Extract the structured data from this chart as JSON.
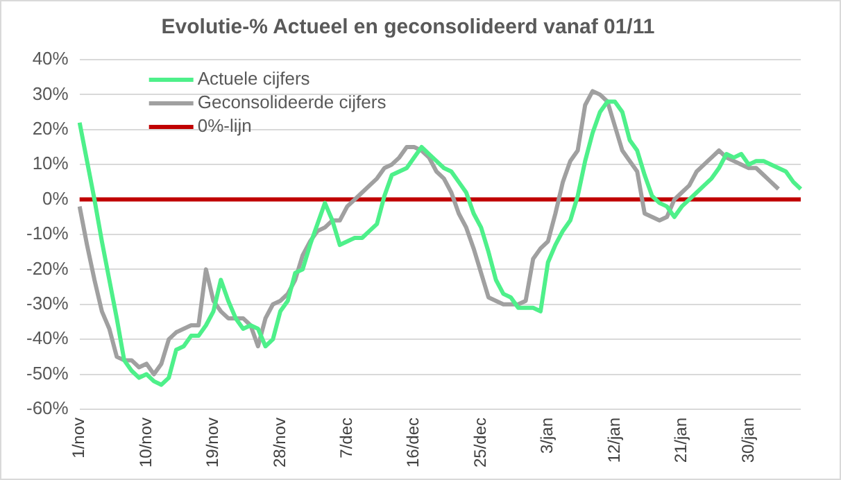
{
  "chart_data": {
    "type": "line",
    "title": "Evolutie-% Actueel en geconsolideerd vanaf 01/11",
    "categories": [
      "1/nov",
      null,
      null,
      null,
      null,
      null,
      null,
      null,
      null,
      "10/nov",
      null,
      null,
      null,
      null,
      null,
      null,
      null,
      null,
      "19/nov",
      null,
      null,
      null,
      null,
      null,
      null,
      null,
      null,
      "28/nov",
      null,
      null,
      null,
      null,
      null,
      null,
      null,
      null,
      "7/dec",
      null,
      null,
      null,
      null,
      null,
      null,
      null,
      null,
      "16/dec",
      null,
      null,
      null,
      null,
      null,
      null,
      null,
      null,
      "25/dec",
      null,
      null,
      null,
      null,
      null,
      null,
      null,
      null,
      "3/jan",
      null,
      null,
      null,
      null,
      null,
      null,
      null,
      null,
      "12/jan",
      null,
      null,
      null,
      null,
      null,
      null,
      null,
      null,
      "21/jan",
      null,
      null,
      null,
      null,
      null,
      null,
      null,
      null,
      "30/jan",
      null,
      null,
      null,
      null,
      null,
      null,
      null
    ],
    "series": [
      {
        "name": "Actuele cijfers",
        "color": "#4ef08a",
        "values": [
          22,
          11,
          0,
          -12,
          -23,
          -34,
          -46,
          -49,
          -51,
          -50,
          -52,
          -53,
          -51,
          -43,
          -42,
          -39,
          -39,
          -36,
          -32,
          -23,
          -29,
          -34,
          -37,
          -36,
          -37,
          -42,
          -40,
          -32,
          -29,
          -21,
          -20,
          -13,
          -7,
          -1,
          -6,
          -13,
          -12,
          -11,
          -11,
          -9,
          -7,
          1,
          7,
          8,
          9,
          12,
          15,
          13,
          11,
          9,
          8,
          5,
          2,
          -4,
          -8,
          -15,
          -23,
          -27,
          -28,
          -31,
          -31,
          -31,
          -32,
          -18,
          -13,
          -9,
          -6,
          1,
          11,
          19,
          25,
          28,
          28,
          25,
          17,
          14,
          7,
          1,
          -1,
          -2,
          -5,
          -2,
          0,
          2,
          4,
          6,
          9,
          13,
          12,
          13,
          10,
          11,
          11,
          10,
          9,
          8,
          5,
          3
        ]
      },
      {
        "name": "Geconsolideerde cijfers",
        "color": "#a0a0a0",
        "values": [
          -2,
          -13,
          -23,
          -32,
          -37,
          -45,
          -46,
          -46,
          -48,
          -47,
          -50,
          -47,
          -40,
          -38,
          -37,
          -36,
          -36,
          -20,
          -29,
          -32,
          -34,
          -34,
          -34,
          -36,
          -42,
          -34,
          -30,
          -29,
          -27,
          -23,
          -16,
          -12,
          -9,
          -8,
          -6,
          -6,
          -2,
          0,
          2,
          4,
          6,
          9,
          10,
          12,
          15,
          15,
          14,
          12,
          8,
          6,
          2,
          -4,
          -8,
          -14,
          -21,
          -28,
          -29,
          -30,
          -30,
          -30,
          -29,
          -17,
          -14,
          -12,
          -4,
          5,
          11,
          14,
          27,
          31,
          30,
          28,
          21,
          14,
          11,
          8,
          -4,
          -5,
          -6,
          -5,
          0,
          2,
          4,
          8,
          10,
          12,
          14,
          12,
          11,
          10,
          9,
          9,
          7,
          5,
          3,
          null,
          null,
          null
        ]
      },
      {
        "name": "0%-lijn",
        "color": "#c00000",
        "values": [
          0,
          0,
          0,
          0,
          0,
          0,
          0,
          0,
          0,
          0,
          0,
          0,
          0,
          0,
          0,
          0,
          0,
          0,
          0,
          0,
          0,
          0,
          0,
          0,
          0,
          0,
          0,
          0,
          0,
          0,
          0,
          0,
          0,
          0,
          0,
          0,
          0,
          0,
          0,
          0,
          0,
          0,
          0,
          0,
          0,
          0,
          0,
          0,
          0,
          0,
          0,
          0,
          0,
          0,
          0,
          0,
          0,
          0,
          0,
          0,
          0,
          0,
          0,
          0,
          0,
          0,
          0,
          0,
          0,
          0,
          0,
          0,
          0,
          0,
          0,
          0,
          0,
          0,
          0,
          0,
          0,
          0,
          0,
          0,
          0,
          0,
          0,
          0,
          0,
          0,
          0,
          0,
          0,
          0,
          0,
          0,
          0,
          0
        ]
      }
    ],
    "ylim": [
      -60,
      40
    ],
    "yticks": [
      {
        "value": -60,
        "label": "-60%"
      },
      {
        "value": -50,
        "label": "-50%"
      },
      {
        "value": -40,
        "label": "-40%"
      },
      {
        "value": -30,
        "label": "-30%"
      },
      {
        "value": -20,
        "label": "-20%"
      },
      {
        "value": -10,
        "label": "-10%"
      },
      {
        "value": 0,
        "label": "0%"
      },
      {
        "value": 10,
        "label": "10%"
      },
      {
        "value": 20,
        "label": "20%"
      },
      {
        "value": 30,
        "label": "30%"
      },
      {
        "value": 40,
        "label": "40%"
      }
    ],
    "grid": "y",
    "legend": "top left"
  }
}
